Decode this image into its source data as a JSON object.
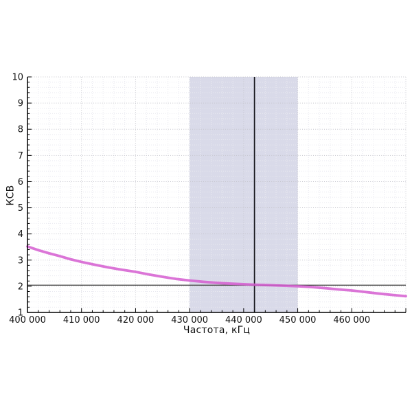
{
  "page": {
    "background_color": "#ffffff",
    "text_color": "#111111"
  },
  "chart_data": {
    "type": "line",
    "title": "",
    "xlabel": "Частота, кГц",
    "ylabel": "КСВ",
    "xlim": [
      400000,
      470000
    ],
    "ylim": [
      1,
      10
    ],
    "x_major_step": 10000,
    "x_minor_step": 2000,
    "y_major_step": 1,
    "y_minor_step": 0.2,
    "grid": "dotted",
    "legend": "none",
    "x_tick_values": [
      400000,
      410000,
      420000,
      430000,
      440000,
      450000,
      460000
    ],
    "x_tick_labels": [
      "400 000",
      "410 000",
      "420 000",
      "430 000",
      "440 000",
      "450 000",
      "460 000"
    ],
    "y_tick_values": [
      1,
      2,
      3,
      4,
      5,
      6,
      7,
      8,
      9,
      10
    ],
    "y_tick_labels": [
      "1",
      "2",
      "3",
      "4",
      "5",
      "6",
      "7",
      "8",
      "9",
      "10"
    ],
    "series": [
      {
        "name": "КСВ",
        "color": "#d55dd0",
        "x": [
          400000,
          402000,
          404000,
          406000,
          408000,
          410000,
          412500,
          415000,
          417500,
          420000,
          422500,
          425000,
          427500,
          430000,
          432500,
          435000,
          437500,
          440000,
          442000,
          445000,
          447500,
          450000,
          452500,
          455000,
          457500,
          460000,
          462500,
          465000,
          467500,
          470000
        ],
        "y": [
          3.52,
          3.38,
          3.26,
          3.15,
          3.03,
          2.93,
          2.82,
          2.72,
          2.63,
          2.55,
          2.45,
          2.36,
          2.28,
          2.22,
          2.17,
          2.13,
          2.1,
          2.08,
          2.06,
          2.04,
          2.02,
          2.0,
          1.97,
          1.93,
          1.88,
          1.84,
          1.78,
          1.72,
          1.67,
          1.62
        ]
      }
    ],
    "band": {
      "x_from": 430000,
      "x_to": 450000,
      "color": "#d9dae9"
    },
    "vline": {
      "x": 442000,
      "color": "#17171c"
    },
    "hline": {
      "y": 2.04,
      "color": "#474747"
    },
    "colors": {
      "axis": "#000000",
      "grid_major": "#c6c6ce",
      "grid_minor": "#e9e9f0",
      "tick": "#000000",
      "tick_label": "#111111"
    }
  }
}
